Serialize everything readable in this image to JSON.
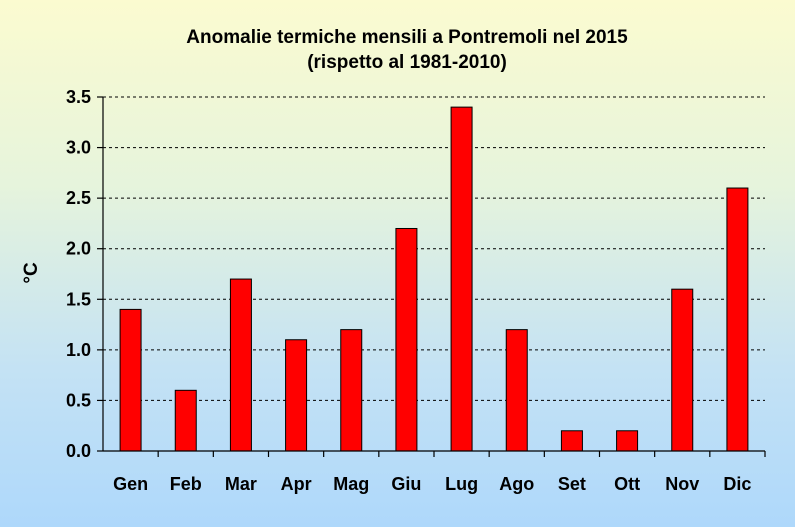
{
  "chart_data": {
    "type": "bar",
    "title": "Anomalie termiche mensili a Pontremoli nel 2015",
    "subtitle": "(rispetto al 1981-2010)",
    "ylabel": "°C",
    "xlabel": "",
    "categories": [
      "Gen",
      "Feb",
      "Mar",
      "Apr",
      "Mag",
      "Giu",
      "Lug",
      "Ago",
      "Set",
      "Ott",
      "Nov",
      "Dic"
    ],
    "values": [
      1.4,
      0.6,
      1.7,
      1.1,
      1.2,
      2.2,
      3.4,
      1.2,
      0.2,
      0.2,
      1.6,
      2.6
    ],
    "ylim": [
      0,
      3.5
    ],
    "yticks": [
      "0.0",
      "0.5",
      "1.0",
      "1.5",
      "2.0",
      "2.5",
      "3.0",
      "3.5"
    ],
    "grid": true,
    "bar_color": "#ff0000"
  }
}
